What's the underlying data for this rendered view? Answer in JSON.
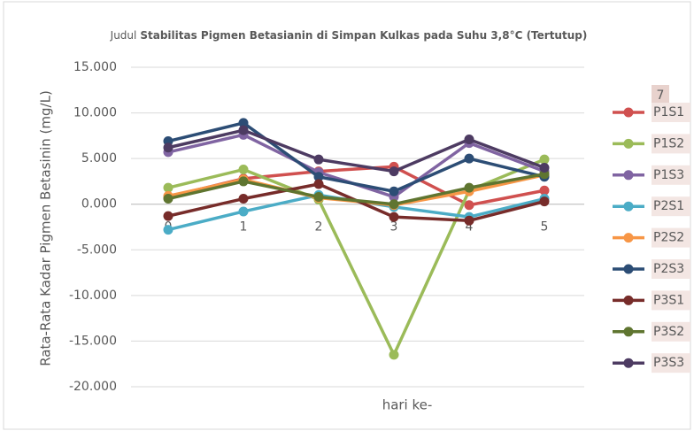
{
  "chart_data": {
    "type": "line",
    "title_prefix": "Judul",
    "title": "Stabilitas Pigmen Betasianin di Simpan Kulkas pada Suhu 3,8°C (Tertutup)",
    "x_label": "hari ke-",
    "y_label": "Rata-Rata Kadar Pigmen Betasinin (mg/L)",
    "legend_badge": "7",
    "legend": "right",
    "grid": true,
    "categories": [
      "0",
      "1",
      "2",
      "3",
      "4",
      "5"
    ],
    "ylim": [
      -20,
      15
    ],
    "yticks": [
      {
        "value": 15,
        "label": "15.000"
      },
      {
        "value": 10,
        "label": "10.000"
      },
      {
        "value": 5,
        "label": "5.000"
      },
      {
        "value": 0,
        "label": "0.000"
      },
      {
        "value": -5,
        "label": "-5.000"
      },
      {
        "value": -10,
        "label": "-10.000"
      },
      {
        "value": -15,
        "label": "-15.000"
      },
      {
        "value": -20,
        "label": "-20.000"
      }
    ],
    "series": [
      {
        "name": "P1S1",
        "color": "#d0504f",
        "values": [
          0.8,
          2.8,
          3.6,
          4.1,
          -0.1,
          1.5
        ]
      },
      {
        "name": "P1S2",
        "color": "#9bbb59",
        "values": [
          1.8,
          3.8,
          0.5,
          -16.5,
          1.5,
          4.9
        ]
      },
      {
        "name": "P1S3",
        "color": "#8064a2",
        "values": [
          5.7,
          7.6,
          3.5,
          0.8,
          6.7,
          3.6
        ]
      },
      {
        "name": "P2S1",
        "color": "#4bacc6",
        "values": [
          -2.8,
          -0.8,
          1.0,
          -0.3,
          -1.4,
          0.6
        ]
      },
      {
        "name": "P2S2",
        "color": "#f79646",
        "values": [
          0.9,
          2.7,
          0.7,
          -0.1,
          1.4,
          3.2
        ]
      },
      {
        "name": "P2S3",
        "color": "#2c4d75",
        "values": [
          6.9,
          8.9,
          3.0,
          1.4,
          5.0,
          3.0
        ]
      },
      {
        "name": "P3S1",
        "color": "#772c2a",
        "values": [
          -1.3,
          0.6,
          2.2,
          -1.4,
          -1.8,
          0.3
        ]
      },
      {
        "name": "P3S2",
        "color": "#5f7530",
        "values": [
          0.6,
          2.5,
          0.8,
          0.0,
          1.8,
          3.3
        ]
      },
      {
        "name": "P3S3",
        "color": "#4d3b62",
        "values": [
          6.2,
          8.1,
          4.9,
          3.6,
          7.1,
          4.0
        ]
      }
    ]
  }
}
